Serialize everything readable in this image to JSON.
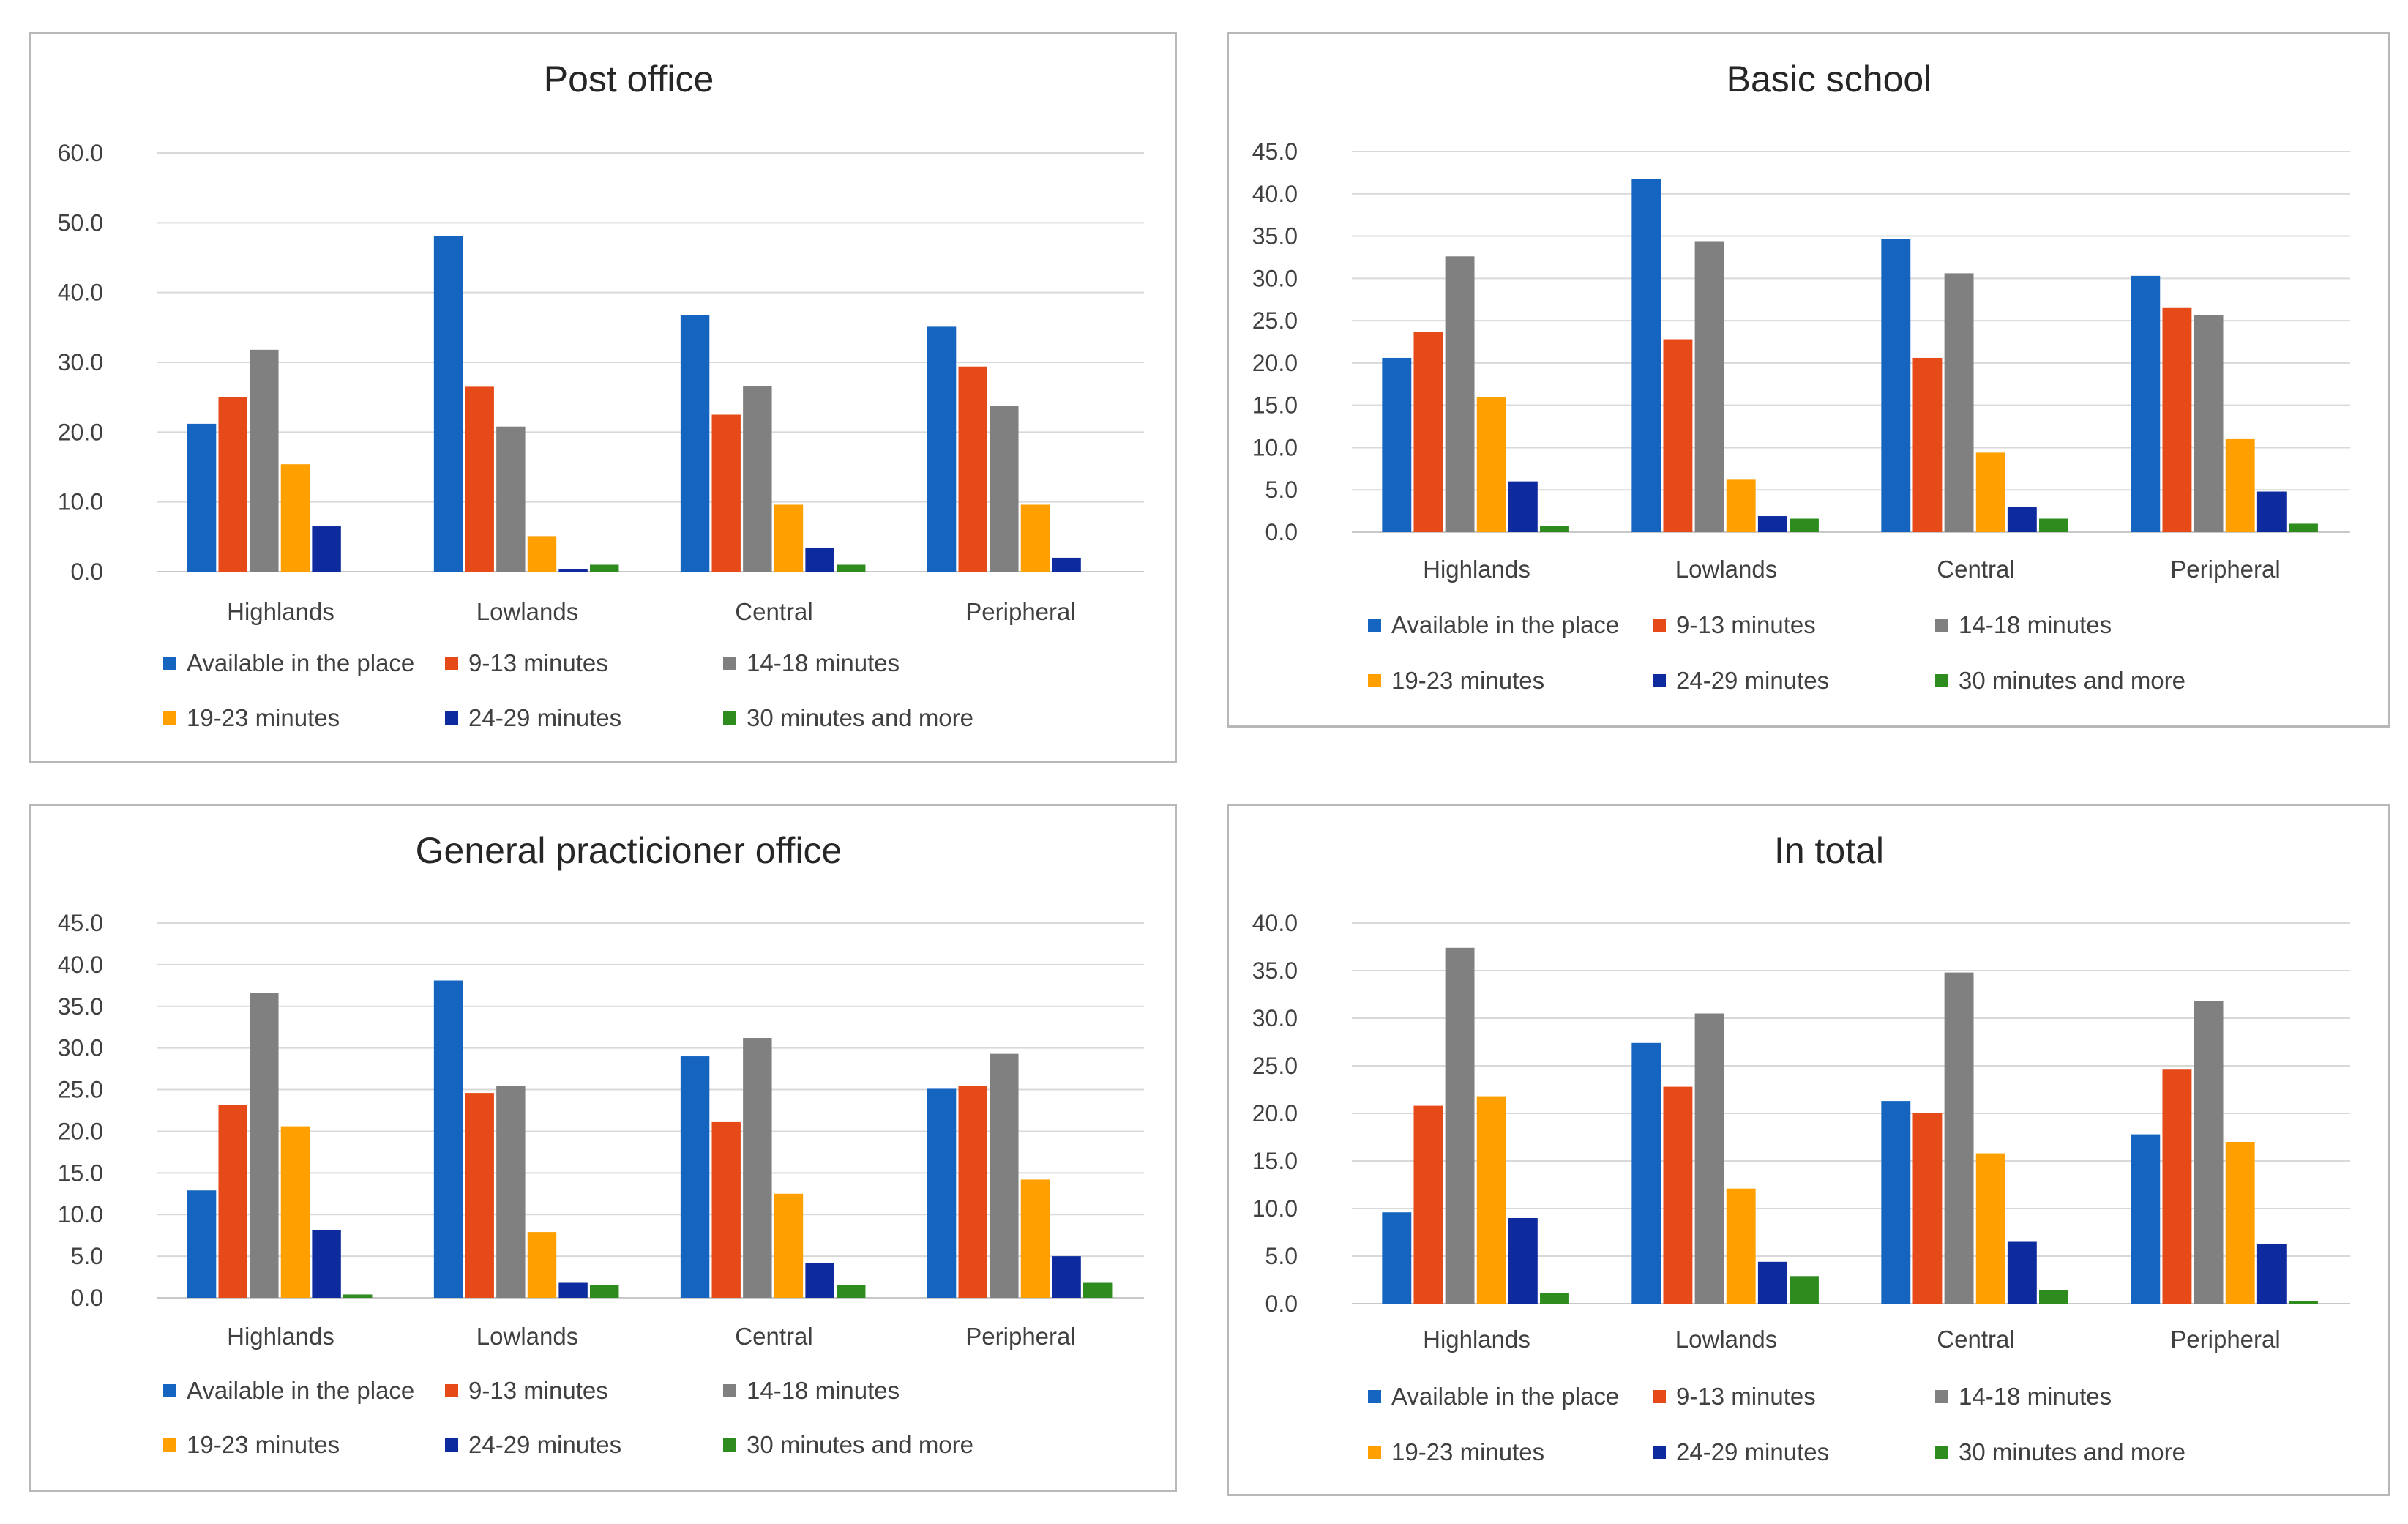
{
  "chart_data": [
    {
      "type": "bar",
      "title": "Post office",
      "categories": [
        "Highlands",
        "Lowlands",
        "Central",
        "Peripheral"
      ],
      "ylim": [
        0,
        60
      ],
      "yticks": [
        "0.0",
        "10.0",
        "20.0",
        "30.0",
        "40.0",
        "50.0",
        "60.0"
      ],
      "grid": true,
      "legend": "bottom",
      "series": [
        {
          "name": "Available in the place",
          "color": "#1565C0",
          "values": [
            21.2,
            48.1,
            36.8,
            35.1
          ]
        },
        {
          "name": "9-13 minutes",
          "color": "#E64A19",
          "values": [
            25.0,
            26.5,
            22.5,
            29.4
          ]
        },
        {
          "name": "14-18 minutes",
          "color": "#808080",
          "values": [
            31.8,
            20.8,
            26.6,
            23.8
          ]
        },
        {
          "name": "19-23 minutes",
          "color": "#FFA000",
          "values": [
            15.4,
            5.1,
            9.6,
            9.6
          ]
        },
        {
          "name": "24-29 minutes",
          "color": "#0D2A9E",
          "values": [
            6.5,
            0.4,
            3.4,
            2.0
          ]
        },
        {
          "name": "30 minutes and more",
          "color": "#2E8B1E",
          "values": [
            0.0,
            1.0,
            1.0,
            0.0
          ]
        }
      ]
    },
    {
      "type": "bar",
      "title": "Basic school",
      "categories": [
        "Highlands",
        "Lowlands",
        "Central",
        "Peripheral"
      ],
      "ylim": [
        0,
        45
      ],
      "yticks": [
        "0.0",
        "5.0",
        "10.0",
        "15.0",
        "20.0",
        "25.0",
        "30.0",
        "35.0",
        "40.0",
        "45.0"
      ],
      "grid": true,
      "legend": "bottom",
      "series": [
        {
          "name": "Available in the place",
          "color": "#1565C0",
          "values": [
            20.6,
            41.8,
            34.7,
            30.3
          ]
        },
        {
          "name": "9-13 minutes",
          "color": "#E64A19",
          "values": [
            23.7,
            22.8,
            20.6,
            26.5
          ]
        },
        {
          "name": "14-18 minutes",
          "color": "#808080",
          "values": [
            32.6,
            34.4,
            30.6,
            25.7
          ]
        },
        {
          "name": "19-23 minutes",
          "color": "#FFA000",
          "values": [
            16.0,
            6.2,
            9.4,
            11.0
          ]
        },
        {
          "name": "24-29 minutes",
          "color": "#0D2A9E",
          "values": [
            6.0,
            1.9,
            3.0,
            4.8
          ]
        },
        {
          "name": "30 minutes and more",
          "color": "#2E8B1E",
          "values": [
            0.7,
            1.6,
            1.6,
            1.0
          ]
        }
      ]
    },
    {
      "type": "bar",
      "title": "General practicioner office",
      "categories": [
        "Highlands",
        "Lowlands",
        "Central",
        "Peripheral"
      ],
      "ylim": [
        0,
        45
      ],
      "yticks": [
        "0.0",
        "5.0",
        "10.0",
        "15.0",
        "20.0",
        "25.0",
        "30.0",
        "35.0",
        "40.0",
        "45.0"
      ],
      "grid": true,
      "legend": "bottom",
      "series": [
        {
          "name": "Available in the place",
          "color": "#1565C0",
          "values": [
            12.9,
            38.1,
            29.0,
            25.1
          ]
        },
        {
          "name": "9-13 minutes",
          "color": "#E64A19",
          "values": [
            23.2,
            24.6,
            21.1,
            25.4
          ]
        },
        {
          "name": "14-18 minutes",
          "color": "#808080",
          "values": [
            36.6,
            25.4,
            31.2,
            29.3
          ]
        },
        {
          "name": "19-23 minutes",
          "color": "#FFA000",
          "values": [
            20.6,
            7.9,
            12.5,
            14.2
          ]
        },
        {
          "name": "24-29 minutes",
          "color": "#0D2A9E",
          "values": [
            8.1,
            1.8,
            4.2,
            5.0
          ]
        },
        {
          "name": "30 minutes and more",
          "color": "#2E8B1E",
          "values": [
            0.4,
            1.5,
            1.5,
            1.8
          ]
        }
      ]
    },
    {
      "type": "bar",
      "title": "In total",
      "categories": [
        "Highlands",
        "Lowlands",
        "Central",
        "Peripheral"
      ],
      "ylim": [
        0,
        40
      ],
      "yticks": [
        "0.0",
        "5.0",
        "10.0",
        "15.0",
        "20.0",
        "25.0",
        "30.0",
        "35.0",
        "40.0"
      ],
      "grid": true,
      "legend": "bottom",
      "series": [
        {
          "name": "Available in the place",
          "color": "#1565C0",
          "values": [
            9.6,
            27.4,
            21.3,
            17.8
          ]
        },
        {
          "name": "9-13 minutes",
          "color": "#E64A19",
          "values": [
            20.8,
            22.8,
            20.0,
            24.6
          ]
        },
        {
          "name": "14-18 minutes",
          "color": "#808080",
          "values": [
            37.4,
            30.5,
            34.8,
            31.8
          ]
        },
        {
          "name": "19-23 minutes",
          "color": "#FFA000",
          "values": [
            21.8,
            12.1,
            15.8,
            17.0
          ]
        },
        {
          "name": "24-29 minutes",
          "color": "#0D2A9E",
          "values": [
            9.0,
            4.4,
            6.5,
            6.3
          ]
        },
        {
          "name": "30 minutes and more",
          "color": "#2E8B1E",
          "values": [
            1.1,
            2.9,
            1.4,
            0.3
          ]
        }
      ]
    }
  ]
}
